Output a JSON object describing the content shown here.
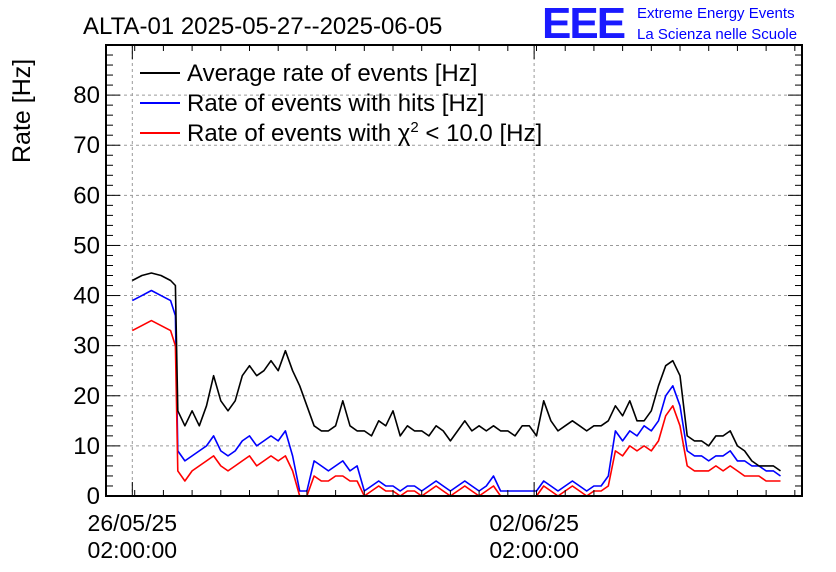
{
  "colors": {
    "average": "#000000",
    "hits": "#0000ff",
    "chi2": "#ff0000",
    "logo": "#1a1aff"
  },
  "logo": {
    "mark": "EEE",
    "line1": "Extreme Energy Events",
    "line2": "La Scienza nelle Scuole"
  },
  "chart_data": {
    "type": "line",
    "title": "ALTA-01 2025-05-27--2025-06-05",
    "ylabel": "Rate [Hz]",
    "xlabel": "",
    "ylim": [
      0,
      90
    ],
    "yticks": [
      0,
      10,
      20,
      30,
      40,
      50,
      60,
      70,
      80
    ],
    "xlim": [
      "2025-05-25T15:00",
      "2025-06-06T18:00"
    ],
    "xticks": [
      {
        "x": "2025-05-26T02:00",
        "date": "26/05/25",
        "time": "02:00:00"
      },
      {
        "x": "2025-06-02T02:00",
        "date": "02/06/25",
        "time": "02:00:00"
      }
    ],
    "grid": true,
    "legend": {
      "position": "top-left"
    },
    "series": [
      {
        "name": "Average rate of events [Hz]",
        "legend_main": "Average rate of events [Hz]",
        "color": "#000000",
        "x": [
          "2025-05-26T02:00",
          "2025-05-26T06:00",
          "2025-05-26T10:00",
          "2025-05-26T14:00",
          "2025-05-26T18:00",
          "2025-05-26T20:00",
          "2025-05-26T21:00",
          "2025-05-27T00:00",
          "2025-05-27T03:00",
          "2025-05-27T06:00",
          "2025-05-27T09:00",
          "2025-05-27T12:00",
          "2025-05-27T15:00",
          "2025-05-27T18:00",
          "2025-05-27T21:00",
          "2025-05-28T00:00",
          "2025-05-28T03:00",
          "2025-05-28T06:00",
          "2025-05-28T09:00",
          "2025-05-28T12:00",
          "2025-05-28T15:00",
          "2025-05-28T18:00",
          "2025-05-28T21:00",
          "2025-05-29T00:00",
          "2025-05-29T03:00",
          "2025-05-29T06:00",
          "2025-05-29T09:00",
          "2025-05-29T12:00",
          "2025-05-29T15:00",
          "2025-05-29T18:00",
          "2025-05-29T21:00",
          "2025-05-30T00:00",
          "2025-05-30T03:00",
          "2025-05-30T06:00",
          "2025-05-30T09:00",
          "2025-05-30T12:00",
          "2025-05-30T15:00",
          "2025-05-30T18:00",
          "2025-05-30T21:00",
          "2025-05-31T00:00",
          "2025-05-31T03:00",
          "2025-05-31T06:00",
          "2025-05-31T09:00",
          "2025-05-31T12:00",
          "2025-05-31T15:00",
          "2025-05-31T18:00",
          "2025-05-31T21:00",
          "2025-06-01T00:00",
          "2025-06-01T03:00",
          "2025-06-01T06:00",
          "2025-06-01T09:00",
          "2025-06-01T12:00",
          "2025-06-01T15:00",
          "2025-06-01T18:00",
          "2025-06-01T21:00",
          "2025-06-02T00:00",
          "2025-06-02T03:00",
          "2025-06-02T06:00",
          "2025-06-02T09:00",
          "2025-06-02T12:00",
          "2025-06-02T15:00",
          "2025-06-02T18:00",
          "2025-06-02T21:00",
          "2025-06-03T00:00",
          "2025-06-03T03:00",
          "2025-06-03T06:00",
          "2025-06-03T09:00",
          "2025-06-03T12:00",
          "2025-06-03T15:00",
          "2025-06-03T18:00",
          "2025-06-03T21:00",
          "2025-06-04T00:00",
          "2025-06-04T03:00",
          "2025-06-04T06:00",
          "2025-06-04T09:00",
          "2025-06-04T12:00",
          "2025-06-04T15:00",
          "2025-06-04T18:00",
          "2025-06-04T21:00",
          "2025-06-05T00:00",
          "2025-06-05T03:00",
          "2025-06-05T06:00",
          "2025-06-05T09:00",
          "2025-06-05T12:00",
          "2025-06-05T15:00",
          "2025-06-05T18:00",
          "2025-06-05T21:00",
          "2025-06-06T00:00",
          "2025-06-06T03:00",
          "2025-06-06T06:00",
          "2025-06-06T09:00"
        ],
        "y": [
          43,
          44,
          44.5,
          44,
          43,
          42,
          17,
          14,
          17,
          14,
          18,
          24,
          19,
          17,
          19,
          24,
          26,
          24,
          25,
          27,
          25,
          29,
          25,
          22,
          18,
          14,
          13,
          13,
          14,
          19,
          14,
          13,
          13,
          12,
          15,
          14,
          17,
          12,
          14,
          13,
          13,
          12,
          14,
          13,
          11,
          13,
          15,
          13,
          14,
          13,
          14,
          13,
          13,
          12,
          14,
          14,
          12,
          19,
          15,
          13,
          14,
          15,
          14,
          13,
          14,
          14,
          15,
          18,
          16,
          19,
          15,
          15,
          17,
          22,
          26,
          27,
          24,
          12,
          11,
          11,
          10,
          12,
          12,
          13,
          10,
          9,
          7,
          6,
          6,
          6,
          5
        ],
        "x_min": "2025-05-26T02:00",
        "x_max": "2025-06-06T09:00"
      },
      {
        "name": "Rate of events with hits [Hz]",
        "legend_main": "Rate of events with hits [Hz]",
        "color": "#0000ff",
        "x": [
          "2025-05-26T02:00",
          "2025-05-26T06:00",
          "2025-05-26T10:00",
          "2025-05-26T14:00",
          "2025-05-26T18:00",
          "2025-05-26T20:00",
          "2025-05-26T21:00",
          "2025-05-27T00:00",
          "2025-05-27T03:00",
          "2025-05-27T06:00",
          "2025-05-27T09:00",
          "2025-05-27T12:00",
          "2025-05-27T15:00",
          "2025-05-27T18:00",
          "2025-05-27T21:00",
          "2025-05-28T00:00",
          "2025-05-28T03:00",
          "2025-05-28T06:00",
          "2025-05-28T09:00",
          "2025-05-28T12:00",
          "2025-05-28T15:00",
          "2025-05-28T18:00",
          "2025-05-28T21:00",
          "2025-05-29T00:00",
          "2025-05-29T03:00",
          "2025-05-29T06:00",
          "2025-05-29T09:00",
          "2025-05-29T12:00",
          "2025-05-29T15:00",
          "2025-05-29T18:00",
          "2025-05-29T21:00",
          "2025-05-30T00:00",
          "2025-05-30T03:00",
          "2025-05-30T06:00",
          "2025-05-30T09:00",
          "2025-05-30T12:00",
          "2025-05-30T15:00",
          "2025-05-30T18:00",
          "2025-05-30T21:00",
          "2025-05-31T00:00",
          "2025-05-31T03:00",
          "2025-05-31T06:00",
          "2025-05-31T09:00",
          "2025-05-31T12:00",
          "2025-05-31T15:00",
          "2025-05-31T18:00",
          "2025-05-31T21:00",
          "2025-06-01T00:00",
          "2025-06-01T03:00",
          "2025-06-01T06:00",
          "2025-06-01T09:00",
          "2025-06-01T12:00",
          "2025-06-01T15:00",
          "2025-06-01T18:00",
          "2025-06-01T21:00",
          "2025-06-02T00:00",
          "2025-06-02T03:00",
          "2025-06-02T06:00",
          "2025-06-02T09:00",
          "2025-06-02T12:00",
          "2025-06-02T15:00",
          "2025-06-02T18:00",
          "2025-06-02T21:00",
          "2025-06-03T00:00",
          "2025-06-03T03:00",
          "2025-06-03T06:00",
          "2025-06-03T09:00",
          "2025-06-03T12:00",
          "2025-06-03T15:00",
          "2025-06-03T18:00",
          "2025-06-03T21:00",
          "2025-06-04T00:00",
          "2025-06-04T03:00",
          "2025-06-04T06:00",
          "2025-06-04T09:00",
          "2025-06-04T12:00",
          "2025-06-04T15:00",
          "2025-06-04T18:00",
          "2025-06-04T21:00",
          "2025-06-05T00:00",
          "2025-06-05T03:00",
          "2025-06-05T06:00",
          "2025-06-05T09:00",
          "2025-06-05T12:00",
          "2025-06-05T15:00",
          "2025-06-05T18:00",
          "2025-06-05T21:00",
          "2025-06-06T00:00",
          "2025-06-06T03:00",
          "2025-06-06T06:00",
          "2025-06-06T09:00"
        ],
        "y": [
          39,
          40,
          41,
          40,
          39,
          36,
          9,
          7,
          8,
          9,
          10,
          12,
          9,
          8,
          9,
          11,
          12,
          10,
          11,
          12,
          11,
          13,
          8,
          1,
          1,
          7,
          6,
          5,
          6,
          7,
          5,
          6,
          1,
          2,
          3,
          2,
          2,
          1,
          2,
          2,
          1,
          2,
          3,
          2,
          1,
          2,
          3,
          2,
          1,
          2,
          4,
          1,
          1,
          1,
          1,
          1,
          1,
          3,
          2,
          1,
          2,
          3,
          2,
          1,
          2,
          2,
          4,
          13,
          11,
          13,
          12,
          14,
          13,
          15,
          20,
          22,
          18,
          9,
          8,
          8,
          7,
          8,
          8,
          9,
          7,
          7,
          6,
          6,
          5,
          5,
          4
        ],
        "x_min": "2025-05-26T02:00",
        "x_max": "2025-06-06T09:00"
      },
      {
        "name": "Rate of events with χ2 < 10.0 [Hz]",
        "legend_main": "Rate of events with χ",
        "legend_sup": "2",
        "legend_tail": " < 10.0 [Hz]",
        "color": "#ff0000",
        "x": [
          "2025-05-26T02:00",
          "2025-05-26T06:00",
          "2025-05-26T10:00",
          "2025-05-26T14:00",
          "2025-05-26T18:00",
          "2025-05-26T20:00",
          "2025-05-26T21:00",
          "2025-05-27T00:00",
          "2025-05-27T03:00",
          "2025-05-27T06:00",
          "2025-05-27T09:00",
          "2025-05-27T12:00",
          "2025-05-27T15:00",
          "2025-05-27T18:00",
          "2025-05-27T21:00",
          "2025-05-28T00:00",
          "2025-05-28T03:00",
          "2025-05-28T06:00",
          "2025-05-28T09:00",
          "2025-05-28T12:00",
          "2025-05-28T15:00",
          "2025-05-28T18:00",
          "2025-05-28T21:00",
          "2025-05-29T00:00",
          "2025-05-29T03:00",
          "2025-05-29T06:00",
          "2025-05-29T09:00",
          "2025-05-29T12:00",
          "2025-05-29T15:00",
          "2025-05-29T18:00",
          "2025-05-29T21:00",
          "2025-05-30T00:00",
          "2025-05-30T03:00",
          "2025-05-30T06:00",
          "2025-05-30T09:00",
          "2025-05-30T12:00",
          "2025-05-30T15:00",
          "2025-05-30T18:00",
          "2025-05-30T21:00",
          "2025-05-31T00:00",
          "2025-05-31T03:00",
          "2025-05-31T06:00",
          "2025-05-31T09:00",
          "2025-05-31T12:00",
          "2025-05-31T15:00",
          "2025-05-31T18:00",
          "2025-05-31T21:00",
          "2025-06-01T00:00",
          "2025-06-01T03:00",
          "2025-06-01T06:00",
          "2025-06-01T09:00",
          "2025-06-01T12:00",
          "2025-06-01T15:00",
          "2025-06-01T18:00",
          "2025-06-01T21:00",
          "2025-06-02T00:00",
          "2025-06-02T03:00",
          "2025-06-02T06:00",
          "2025-06-02T09:00",
          "2025-06-02T12:00",
          "2025-06-02T15:00",
          "2025-06-02T18:00",
          "2025-06-02T21:00",
          "2025-06-03T00:00",
          "2025-06-03T03:00",
          "2025-06-03T06:00",
          "2025-06-03T09:00",
          "2025-06-03T12:00",
          "2025-06-03T15:00",
          "2025-06-03T18:00",
          "2025-06-03T21:00",
          "2025-06-04T00:00",
          "2025-06-04T03:00",
          "2025-06-04T06:00",
          "2025-06-04T09:00",
          "2025-06-04T12:00",
          "2025-06-04T15:00",
          "2025-06-04T18:00",
          "2025-06-04T21:00",
          "2025-06-05T00:00",
          "2025-06-05T03:00",
          "2025-06-05T06:00",
          "2025-06-05T09:00",
          "2025-06-05T12:00",
          "2025-06-05T15:00",
          "2025-06-05T18:00",
          "2025-06-05T21:00",
          "2025-06-06T00:00",
          "2025-06-06T03:00",
          "2025-06-06T06:00",
          "2025-06-06T09:00"
        ],
        "y": [
          33,
          34,
          35,
          34,
          33,
          30,
          5,
          3,
          5,
          6,
          7,
          8,
          6,
          5,
          6,
          7,
          8,
          6,
          7,
          8,
          7,
          8,
          5,
          0,
          0,
          4,
          3,
          3,
          4,
          4,
          3,
          3,
          0,
          1,
          2,
          1,
          1,
          0,
          1,
          1,
          0,
          1,
          2,
          1,
          0,
          1,
          2,
          1,
          0,
          1,
          2,
          0,
          0,
          0,
          0,
          0,
          0,
          2,
          1,
          0,
          1,
          2,
          1,
          0,
          1,
          1,
          2,
          9,
          8,
          10,
          9,
          10,
          9,
          11,
          16,
          18,
          14,
          6,
          5,
          5,
          5,
          6,
          5,
          6,
          5,
          4,
          4,
          4,
          3,
          3,
          3
        ],
        "x_min": "2025-05-26T02:00",
        "x_max": "2025-06-06T09:00"
      }
    ]
  }
}
